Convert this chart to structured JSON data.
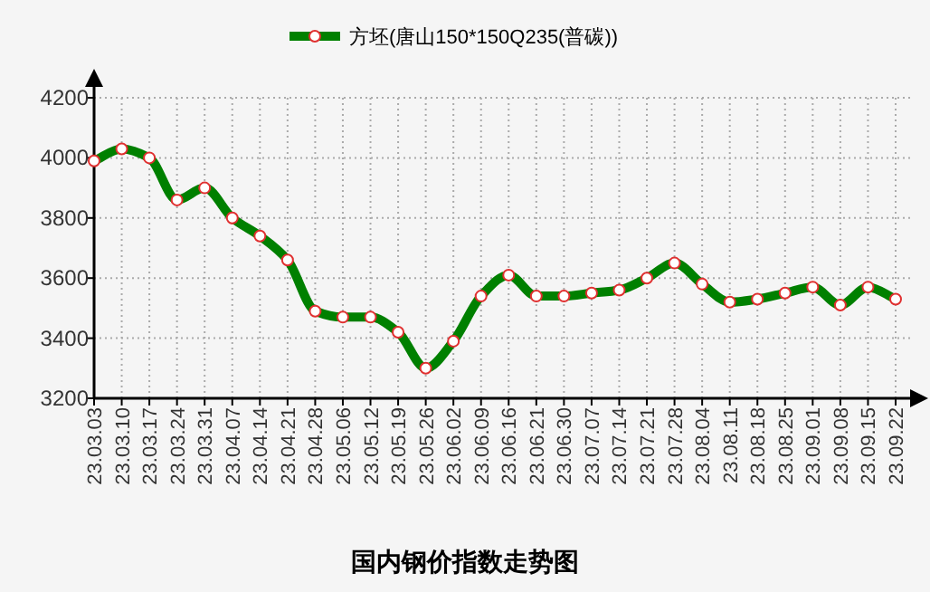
{
  "chart_data": {
    "type": "line",
    "title": "国内钢价指数走势图",
    "categories": [
      "23.03.03",
      "23.03.10",
      "23.03.17",
      "23.03.24",
      "23.03.31",
      "23.04.07",
      "23.04.14",
      "23.04.21",
      "23.04.28",
      "23.05.06",
      "23.05.12",
      "23.05.19",
      "23.05.26",
      "23.06.02",
      "23.06.09",
      "23.06.16",
      "23.06.21",
      "23.06.30",
      "23.07.07",
      "23.07.14",
      "23.07.21",
      "23.07.28",
      "23.08.04",
      "23.08.11",
      "23.08.18",
      "23.08.25",
      "23.09.01",
      "23.09.08",
      "23.09.15",
      "23.09.22"
    ],
    "series": [
      {
        "name": "方坯(唐山150*150Q235(普碳))",
        "color": "#008000",
        "values": [
          3990,
          4030,
          4000,
          3860,
          3900,
          3800,
          3740,
          3660,
          3490,
          3470,
          3470,
          3420,
          3300,
          3390,
          3540,
          3610,
          3540,
          3540,
          3550,
          3560,
          3600,
          3650,
          3580,
          3520,
          3530,
          3550,
          3570,
          3510,
          3570,
          3530
        ]
      }
    ],
    "ylim": [
      3200,
      4200
    ],
    "yticks": [
      3200,
      3400,
      3600,
      3800,
      4000,
      4200
    ],
    "grid": true,
    "legend": "top",
    "marker": "circle"
  }
}
